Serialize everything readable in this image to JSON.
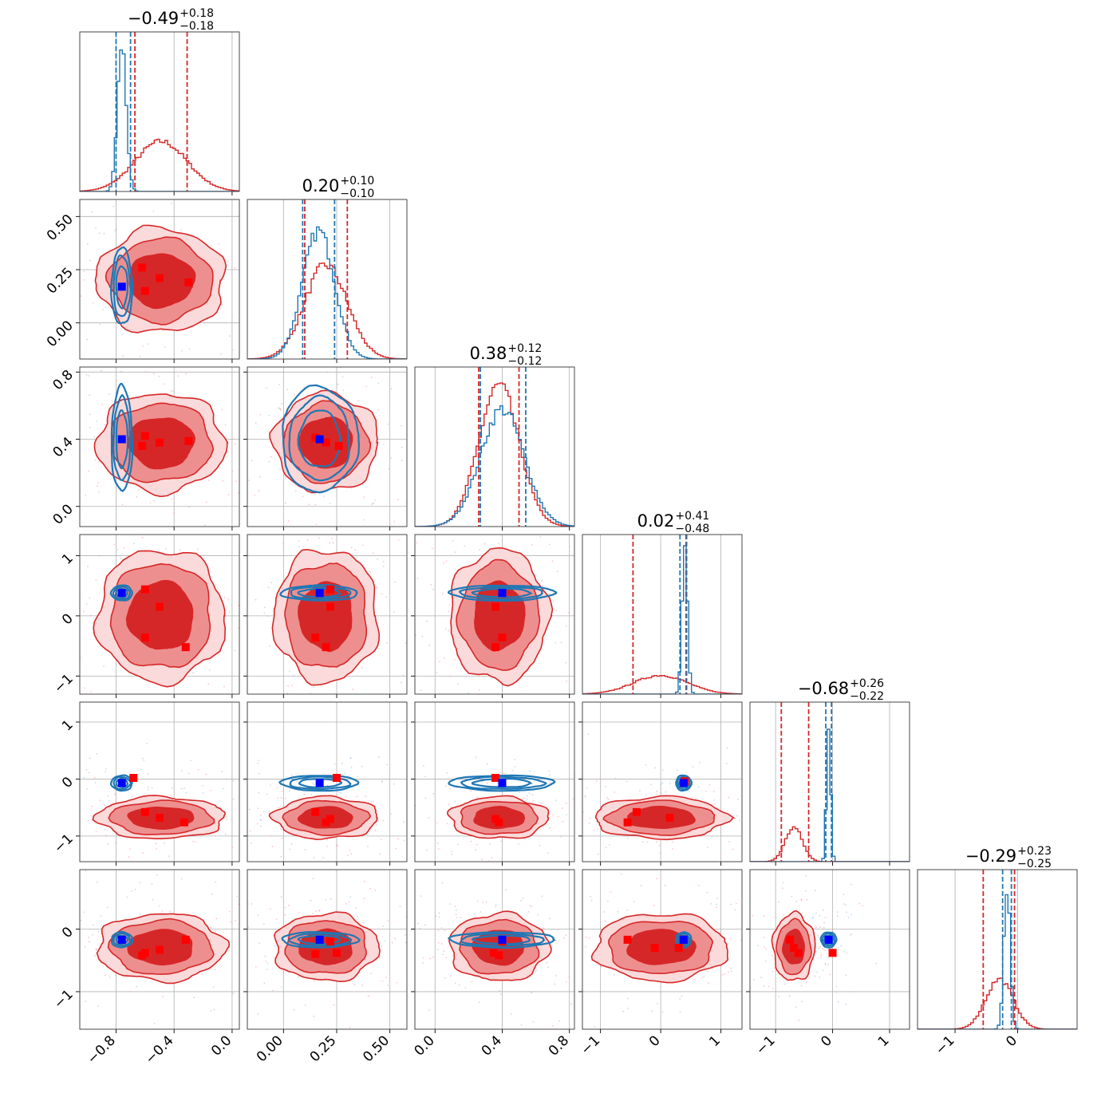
{
  "chart_data": {
    "type": "corner",
    "n_params": 6,
    "series": [
      {
        "name": "",
        "color": "#d62728",
        "role": "posterior A (filled contours, dashed quantile lines)"
      },
      {
        "name": "",
        "color": "#1f77b4",
        "role": "posterior B (line contours, dashed quantile lines)"
      }
    ],
    "truth_color": "#0000ff",
    "marker_color": "#ff0000",
    "params": [
      {
        "range": [
          -1.05,
          0.05
        ],
        "ticks": [
          -0.8,
          -0.4,
          0.0
        ],
        "tick_labels": [
          "−0.8",
          "−0.4",
          "0.0"
        ],
        "title": "−0.49",
        "err_plus": "+0.18",
        "err_minus": "−0.18",
        "red_q": [
          -0.67,
          -0.31
        ],
        "blue_q": [
          -0.8,
          -0.7
        ],
        "truth": -0.76,
        "red_hist": {
          "mu": -0.49,
          "sd": 0.18,
          "amp": 0.32
        },
        "blue_hist": {
          "mu": -0.76,
          "sd": 0.03,
          "amp": 0.95
        }
      },
      {
        "range": [
          -0.17,
          0.58
        ],
        "ticks": [
          0.0,
          0.25,
          0.5
        ],
        "tick_labels": [
          "0.00",
          "0.25",
          "0.50"
        ],
        "title": "0.20",
        "err_plus": "+0.10",
        "err_minus": "−0.10",
        "red_q": [
          0.1,
          0.3
        ],
        "blue_q": [
          0.09,
          0.24
        ],
        "truth": 0.17,
        "red_hist": {
          "mu": 0.2,
          "sd": 0.1,
          "amp": 0.6
        },
        "blue_hist": {
          "mu": 0.165,
          "sd": 0.075,
          "amp": 0.82
        }
      },
      {
        "range": [
          -0.12,
          0.83
        ],
        "ticks": [
          0.0,
          0.4,
          0.8
        ],
        "tick_labels": [
          "0.0",
          "0.4",
          "0.8"
        ],
        "title": "0.38",
        "err_plus": "+0.12",
        "err_minus": "−0.12",
        "red_q": [
          0.26,
          0.5
        ],
        "blue_q": [
          0.27,
          0.54
        ],
        "truth": 0.4,
        "red_hist": {
          "mu": 0.38,
          "sd": 0.12,
          "amp": 0.9
        },
        "blue_hist": {
          "mu": 0.4,
          "sd": 0.13,
          "amp": 0.75
        }
      },
      {
        "range": [
          -1.3,
          1.35
        ],
        "ticks": [
          -1,
          0,
          1
        ],
        "tick_labels": [
          "−1",
          "0",
          "1"
        ],
        "title": "0.02",
        "err_plus": "+0.41",
        "err_minus": "−0.48",
        "red_q": [
          -0.46,
          0.43
        ],
        "blue_q": [
          0.32,
          0.42
        ],
        "truth": 0.38,
        "red_hist": {
          "mu": 0.0,
          "sd": 0.45,
          "amp": 0.12
        },
        "blue_hist": {
          "mu": 0.4,
          "sd": 0.045,
          "amp": 0.92
        }
      },
      {
        "range": [
          -1.45,
          1.35
        ],
        "ticks": [
          -1,
          0,
          1
        ],
        "tick_labels": [
          "−1",
          "0",
          "1"
        ],
        "title": "−0.68",
        "err_plus": "+0.26",
        "err_minus": "−0.22",
        "red_q": [
          -0.9,
          -0.42
        ],
        "blue_q": [
          -0.12,
          -0.02
        ],
        "truth": -0.07,
        "red_hist": {
          "mu": -0.68,
          "sd": 0.15,
          "amp": 0.22
        },
        "blue_hist": {
          "mu": -0.07,
          "sd": 0.035,
          "amp": 0.9
        }
      },
      {
        "range": [
          -1.6,
          0.95
        ],
        "ticks": [
          -1,
          0
        ],
        "tick_labels": [
          "−1",
          "0"
        ],
        "title": "−0.29",
        "err_plus": "+0.23",
        "err_minus": "−0.25",
        "red_q": [
          -0.55,
          -0.05
        ],
        "blue_q": [
          -0.24,
          -0.1
        ],
        "truth": -0.17,
        "red_hist": {
          "mu": -0.29,
          "sd": 0.22,
          "amp": 0.32
        },
        "blue_hist": {
          "mu": -0.17,
          "sd": 0.05,
          "amp": 0.92
        }
      }
    ],
    "pair_markers": [
      {
        "i": 1,
        "j": 0,
        "red": [
          [
            -0.62,
            0.26
          ],
          [
            -0.5,
            0.21
          ],
          [
            -0.3,
            0.19
          ],
          [
            -0.6,
            0.15
          ]
        ],
        "blue": [
          [
            -0.76,
            0.17
          ]
        ]
      },
      {
        "i": 2,
        "j": 0,
        "red": [
          [
            -0.6,
            0.42
          ],
          [
            -0.5,
            0.38
          ],
          [
            -0.3,
            0.39
          ],
          [
            -0.62,
            0.36
          ]
        ],
        "blue": [
          [
            -0.76,
            0.4
          ]
        ]
      },
      {
        "i": 2,
        "j": 1,
        "red": [
          [
            0.2,
            0.38
          ],
          [
            0.26,
            0.36
          ],
          [
            0.15,
            0.41
          ]
        ],
        "blue": [
          [
            0.17,
            0.4
          ]
        ]
      },
      {
        "i": 3,
        "j": 0,
        "red": [
          [
            -0.6,
            0.44
          ],
          [
            -0.5,
            0.15
          ],
          [
            -0.6,
            -0.36
          ],
          [
            -0.32,
            -0.52
          ]
        ],
        "blue": [
          [
            -0.76,
            0.38
          ]
        ]
      },
      {
        "i": 3,
        "j": 1,
        "red": [
          [
            0.22,
            0.15
          ],
          [
            0.15,
            -0.36
          ],
          [
            0.2,
            -0.52
          ],
          [
            0.22,
            0.44
          ]
        ],
        "blue": [
          [
            0.17,
            0.38
          ]
        ]
      },
      {
        "i": 3,
        "j": 2,
        "red": [
          [
            0.36,
            0.15
          ],
          [
            0.36,
            -0.52
          ],
          [
            0.4,
            -0.36
          ]
        ],
        "blue": [
          [
            0.4,
            0.38
          ]
        ]
      },
      {
        "i": 4,
        "j": 0,
        "red": [
          [
            -0.68,
            0.02
          ],
          [
            -0.6,
            -0.58
          ],
          [
            -0.5,
            -0.68
          ],
          [
            -0.33,
            -0.76
          ]
        ],
        "blue": [
          [
            -0.76,
            -0.07
          ]
        ]
      },
      {
        "i": 4,
        "j": 1,
        "red": [
          [
            0.25,
            0.02
          ],
          [
            0.15,
            -0.58
          ],
          [
            0.2,
            -0.76
          ],
          [
            0.22,
            -0.7
          ]
        ],
        "blue": [
          [
            0.17,
            -0.07
          ]
        ]
      },
      {
        "i": 4,
        "j": 2,
        "red": [
          [
            0.36,
            0.02
          ],
          [
            0.36,
            -0.7
          ],
          [
            0.38,
            -0.76
          ]
        ],
        "blue": [
          [
            0.4,
            -0.07
          ]
        ]
      },
      {
        "i": 4,
        "j": 3,
        "red": [
          [
            -0.4,
            -0.58
          ],
          [
            -0.55,
            -0.76
          ],
          [
            0.15,
            -0.68
          ],
          [
            0.4,
            -0.04
          ]
        ],
        "blue": [
          [
            0.38,
            -0.07
          ]
        ]
      },
      {
        "i": 5,
        "j": 0,
        "red": [
          [
            -0.6,
            -0.38
          ],
          [
            -0.5,
            -0.33
          ],
          [
            -0.32,
            -0.17
          ],
          [
            -0.62,
            -0.42
          ]
        ],
        "blue": [
          [
            -0.76,
            -0.17
          ]
        ]
      },
      {
        "i": 5,
        "j": 1,
        "red": [
          [
            0.15,
            -0.4
          ],
          [
            0.22,
            -0.2
          ],
          [
            0.25,
            -0.38
          ]
        ],
        "blue": [
          [
            0.17,
            -0.17
          ]
        ]
      },
      {
        "i": 5,
        "j": 2,
        "red": [
          [
            0.35,
            -0.38
          ],
          [
            0.4,
            -0.2
          ],
          [
            0.38,
            -0.42
          ]
        ],
        "blue": [
          [
            0.4,
            -0.17
          ]
        ]
      },
      {
        "i": 5,
        "j": 3,
        "red": [
          [
            -0.55,
            -0.17
          ],
          [
            -0.1,
            -0.3
          ],
          [
            0.3,
            -0.3
          ],
          [
            0.38,
            -0.17
          ]
        ],
        "blue": [
          [
            0.38,
            -0.17
          ]
        ]
      },
      {
        "i": 5,
        "j": 4,
        "red": [
          [
            -0.75,
            -0.17
          ],
          [
            -0.68,
            -0.3
          ],
          [
            -0.6,
            -0.38
          ],
          [
            0.0,
            -0.38
          ]
        ],
        "blue": [
          [
            -0.07,
            -0.17
          ]
        ]
      }
    ],
    "grid": true
  }
}
